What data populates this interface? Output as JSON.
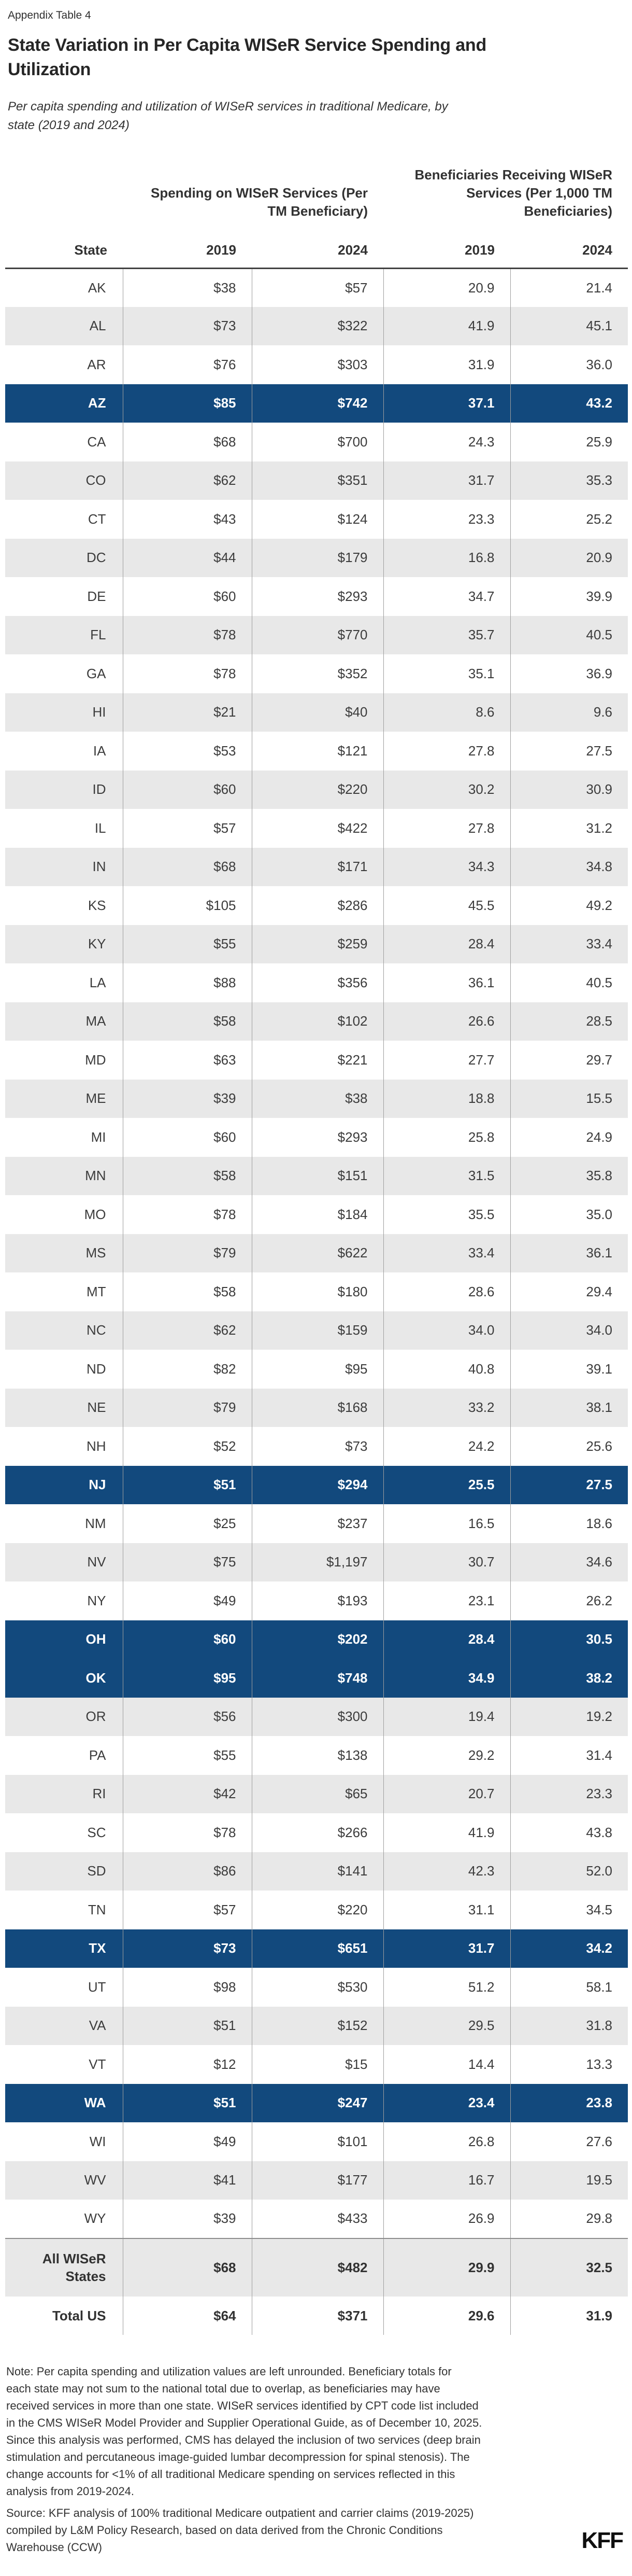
{
  "page": {
    "appendix_label": "Appendix Table 4",
    "title": "State Variation in Per Capita WISeR Service Spending and\nUtilization",
    "subtitle": "Per capita spending and utilization of WISeR services in traditional Medicare, by\nstate (2019 and 2024)",
    "note": "Note: Per capita spending and utilization values are left unrounded. Beneficiary totals for\neach state may not sum to the national total due to overlap, as beneficiaries may have\nreceived services in more than one state. WISeR services identified by CPT code list included\nin the CMS WISeR Model Provider and Supplier Operational Guide, as of December 10, 2025.\nSince this analysis was performed, CMS has delayed the inclusion of two services (deep brain\nstimulation and percutaneous image-guided lumbar decompression for spinal stenosis). The\nchange accounts for <1% of all traditional Medicare spending on services reflected in this\nanalysis from 2019-2024.",
    "source": "Source: KFF analysis of 100% traditional Medicare outpatient and carrier claims (2019-2025)\ncompiled by L&M Policy Research, based on data derived from the Chronic Conditions\nWarehouse (CCW)",
    "logo_text": "KFF"
  },
  "chart_data": {
    "type": "table",
    "title": "State Variation in Per Capita WISeR Service Spending and Utilization",
    "subtitle": "Per capita spending and utilization of WISeR services in traditional Medicare, by state (2019 and 2024)",
    "group_headers": {
      "spending": "Spending on WISeR Services (Per\nTM Beneficiary)",
      "beneficiaries": "Beneficiaries Receiving WISeR\nServices (Per 1,000 TM\nBeneficiaries)"
    },
    "header_row": [
      "State",
      "2019",
      "2024",
      "2019",
      "2024"
    ],
    "highlighted_states": [
      "AZ",
      "NJ",
      "OH",
      "OK",
      "TX",
      "WA"
    ],
    "summary_rows": [
      "All WISeR States",
      "Total US"
    ],
    "colors": {
      "highlight_blue": "#12497d",
      "stripe_gray": "#e8e8e8",
      "header_rule": "#414141",
      "column_rule": "#9e9e9e"
    },
    "rows": [
      [
        "AK",
        "$38",
        "$57",
        "20.9",
        "21.4"
      ],
      [
        "AL",
        "$73",
        "$322",
        "41.9",
        "45.1"
      ],
      [
        "AR",
        "$76",
        "$303",
        "31.9",
        "36.0"
      ],
      [
        "AZ",
        "$85",
        "$742",
        "37.1",
        "43.2"
      ],
      [
        "CA",
        "$68",
        "$700",
        "24.3",
        "25.9"
      ],
      [
        "CO",
        "$62",
        "$351",
        "31.7",
        "35.3"
      ],
      [
        "CT",
        "$43",
        "$124",
        "23.3",
        "25.2"
      ],
      [
        "DC",
        "$44",
        "$179",
        "16.8",
        "20.9"
      ],
      [
        "DE",
        "$60",
        "$293",
        "34.7",
        "39.9"
      ],
      [
        "FL",
        "$78",
        "$770",
        "35.7",
        "40.5"
      ],
      [
        "GA",
        "$78",
        "$352",
        "35.1",
        "36.9"
      ],
      [
        "HI",
        "$21",
        "$40",
        "8.6",
        "9.6"
      ],
      [
        "IA",
        "$53",
        "$121",
        "27.8",
        "27.5"
      ],
      [
        "ID",
        "$60",
        "$220",
        "30.2",
        "30.9"
      ],
      [
        "IL",
        "$57",
        "$422",
        "27.8",
        "31.2"
      ],
      [
        "IN",
        "$68",
        "$171",
        "34.3",
        "34.8"
      ],
      [
        "KS",
        "$105",
        "$286",
        "45.5",
        "49.2"
      ],
      [
        "KY",
        "$55",
        "$259",
        "28.4",
        "33.4"
      ],
      [
        "LA",
        "$88",
        "$356",
        "36.1",
        "40.5"
      ],
      [
        "MA",
        "$58",
        "$102",
        "26.6",
        "28.5"
      ],
      [
        "MD",
        "$63",
        "$221",
        "27.7",
        "29.7"
      ],
      [
        "ME",
        "$39",
        "$38",
        "18.8",
        "15.5"
      ],
      [
        "MI",
        "$60",
        "$293",
        "25.8",
        "24.9"
      ],
      [
        "MN",
        "$58",
        "$151",
        "31.5",
        "35.8"
      ],
      [
        "MO",
        "$78",
        "$184",
        "35.5",
        "35.0"
      ],
      [
        "MS",
        "$79",
        "$622",
        "33.4",
        "36.1"
      ],
      [
        "MT",
        "$58",
        "$180",
        "28.6",
        "29.4"
      ],
      [
        "NC",
        "$62",
        "$159",
        "34.0",
        "34.0"
      ],
      [
        "ND",
        "$82",
        "$95",
        "40.8",
        "39.1"
      ],
      [
        "NE",
        "$79",
        "$168",
        "33.2",
        "38.1"
      ],
      [
        "NH",
        "$52",
        "$73",
        "24.2",
        "25.6"
      ],
      [
        "NJ",
        "$51",
        "$294",
        "25.5",
        "27.5"
      ],
      [
        "NM",
        "$25",
        "$237",
        "16.5",
        "18.6"
      ],
      [
        "NV",
        "$75",
        "$1,197",
        "30.7",
        "34.6"
      ],
      [
        "NY",
        "$49",
        "$193",
        "23.1",
        "26.2"
      ],
      [
        "OH",
        "$60",
        "$202",
        "28.4",
        "30.5"
      ],
      [
        "OK",
        "$95",
        "$748",
        "34.9",
        "38.2"
      ],
      [
        "OR",
        "$56",
        "$300",
        "19.4",
        "19.2"
      ],
      [
        "PA",
        "$55",
        "$138",
        "29.2",
        "31.4"
      ],
      [
        "RI",
        "$42",
        "$65",
        "20.7",
        "23.3"
      ],
      [
        "SC",
        "$78",
        "$266",
        "41.9",
        "43.8"
      ],
      [
        "SD",
        "$86",
        "$141",
        "42.3",
        "52.0"
      ],
      [
        "TN",
        "$57",
        "$220",
        "31.1",
        "34.5"
      ],
      [
        "TX",
        "$73",
        "$651",
        "31.7",
        "34.2"
      ],
      [
        "UT",
        "$98",
        "$530",
        "51.2",
        "58.1"
      ],
      [
        "VA",
        "$51",
        "$152",
        "29.5",
        "31.8"
      ],
      [
        "VT",
        "$12",
        "$15",
        "14.4",
        "13.3"
      ],
      [
        "WA",
        "$51",
        "$247",
        "23.4",
        "23.8"
      ],
      [
        "WI",
        "$49",
        "$101",
        "26.8",
        "27.6"
      ],
      [
        "WV",
        "$41",
        "$177",
        "16.7",
        "19.5"
      ],
      [
        "WY",
        "$39",
        "$433",
        "26.9",
        "29.8"
      ],
      [
        "All WISeR States",
        "$68",
        "$482",
        "29.9",
        "32.5"
      ],
      [
        "Total US",
        "$64",
        "$371",
        "29.6",
        "31.9"
      ]
    ]
  }
}
